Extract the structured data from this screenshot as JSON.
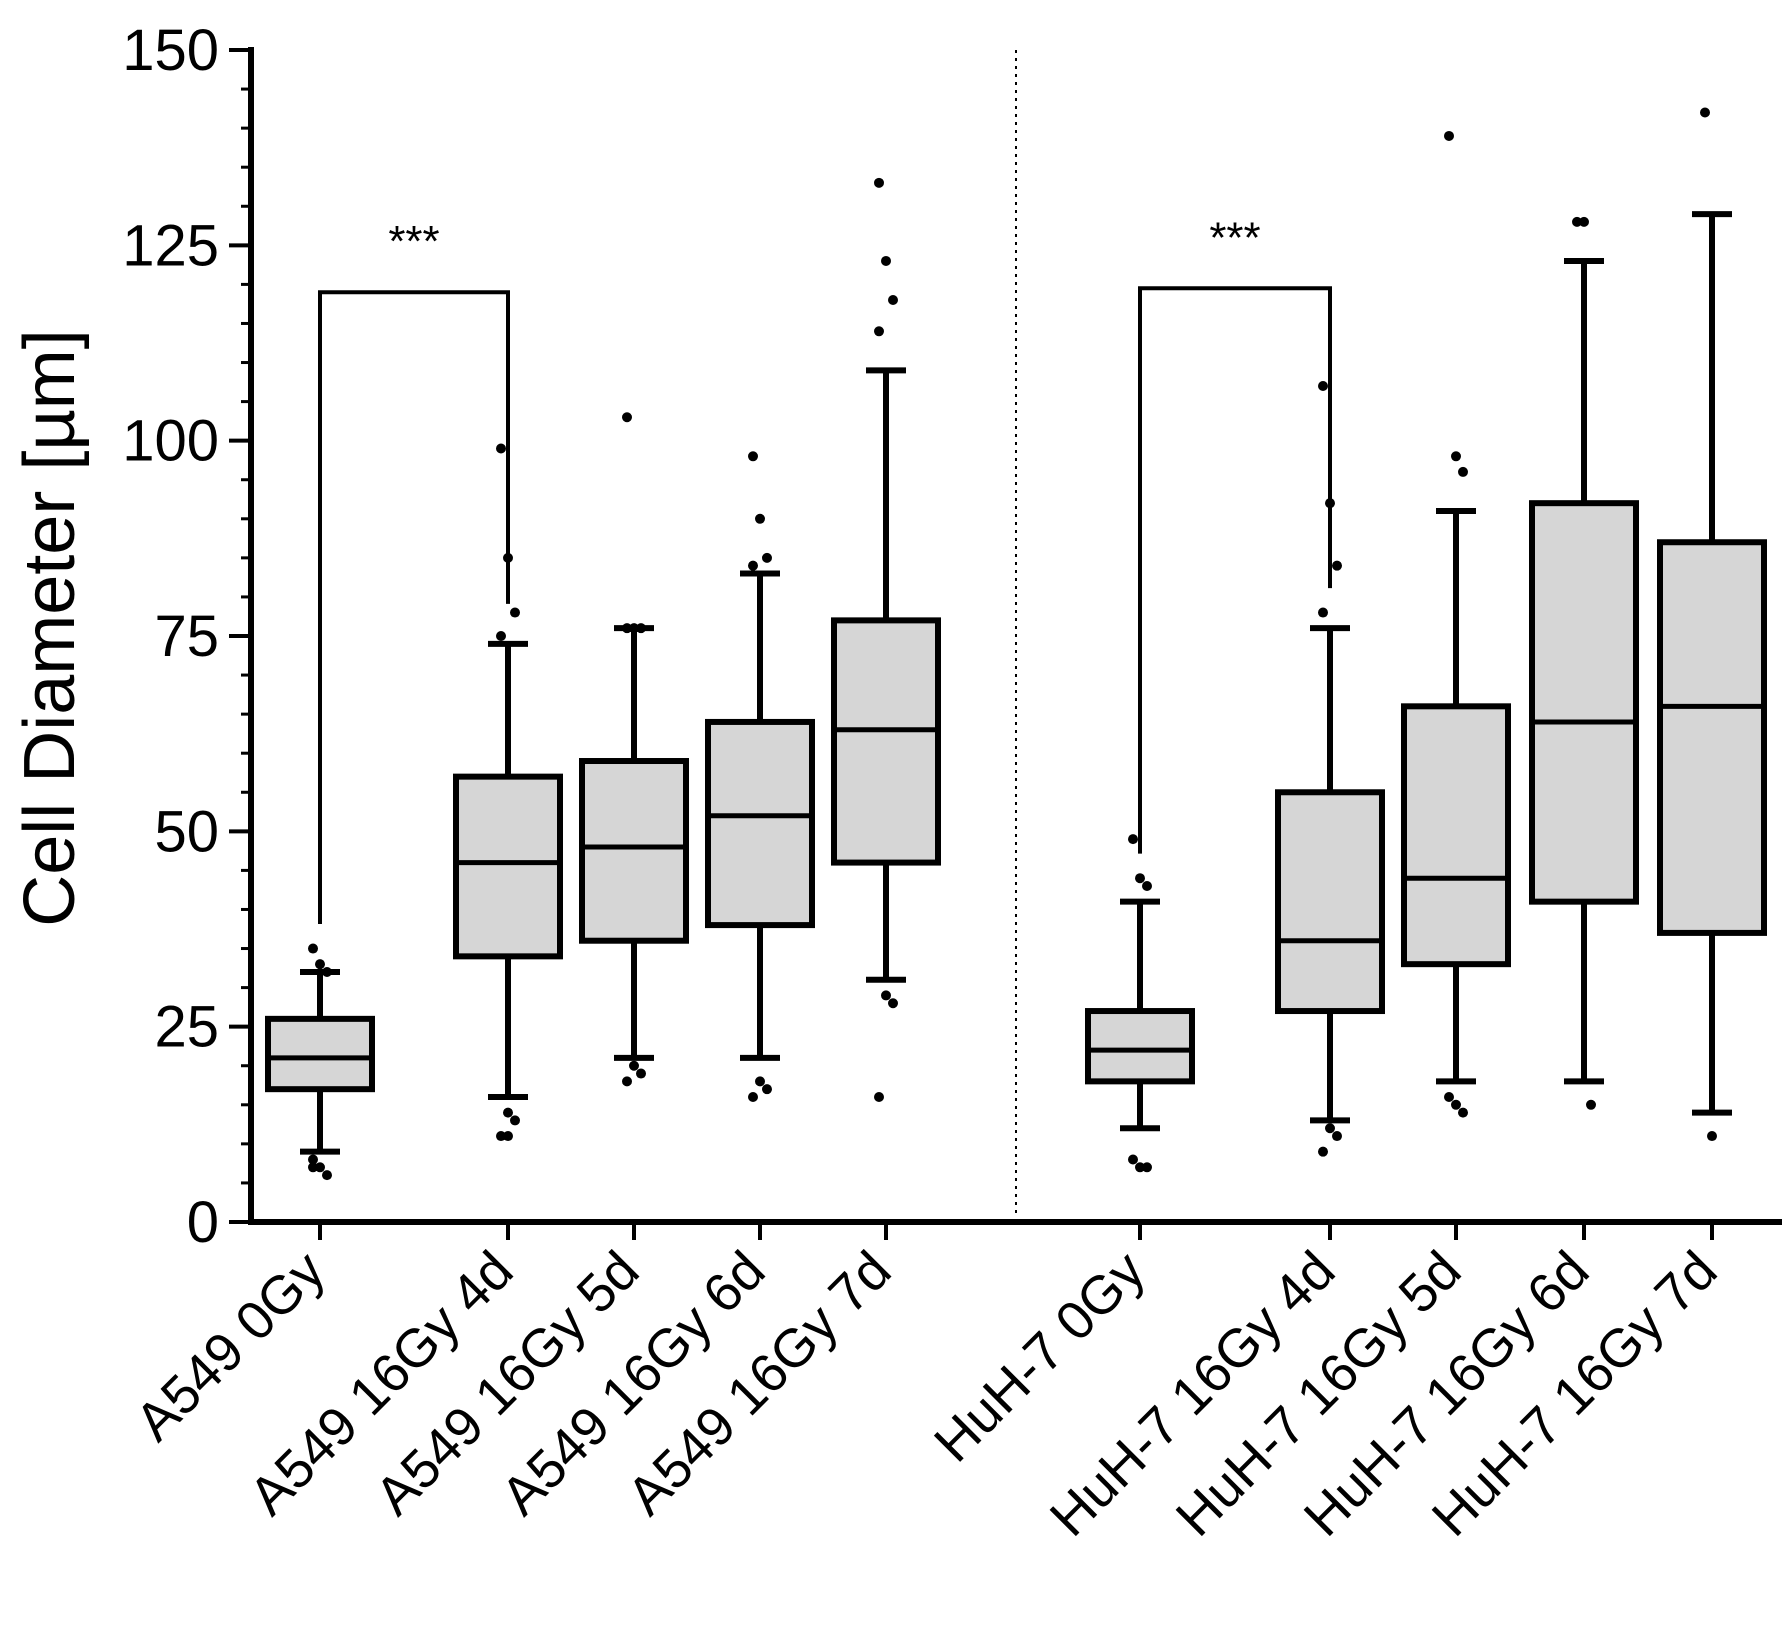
{
  "chart_data": {
    "type": "box",
    "title": "",
    "xlabel": "",
    "ylabel": "Cell Diameter [µm]",
    "ylim": [
      0,
      150
    ],
    "yticks": [
      0,
      25,
      50,
      75,
      100,
      125,
      150
    ],
    "grid": false,
    "groups": [
      {
        "label": "A549 0Gy",
        "min": 9,
        "q1": 17,
        "median": 21,
        "q3": 26,
        "max": 32,
        "outliers": [
          35,
          33,
          32,
          8,
          7,
          6,
          7
        ]
      },
      {
        "label": "A549 16Gy 4d",
        "min": 16,
        "q1": 34,
        "median": 46,
        "q3": 57,
        "max": 74,
        "outliers": [
          99,
          85,
          78,
          75,
          14,
          13,
          11,
          11
        ]
      },
      {
        "label": "A549 16Gy 5d",
        "min": 21,
        "q1": 36,
        "median": 48,
        "q3": 59,
        "max": 76,
        "outliers": [
          103,
          76,
          76,
          76,
          20,
          19,
          18
        ]
      },
      {
        "label": "A549 16Gy 6d",
        "min": 21,
        "q1": 38,
        "median": 52,
        "q3": 64,
        "max": 83,
        "outliers": [
          98,
          90,
          85,
          84,
          18,
          17,
          16
        ]
      },
      {
        "label": "A549 16Gy 7d",
        "min": 31,
        "q1": 46,
        "median": 63,
        "q3": 77,
        "max": 109,
        "outliers": [
          133,
          123,
          118,
          114,
          29,
          28,
          16
        ]
      },
      {
        "label": "HuH-7 0Gy",
        "min": 12,
        "q1": 18,
        "median": 22,
        "q3": 27,
        "max": 41,
        "outliers": [
          49,
          44,
          43,
          8,
          7,
          7
        ]
      },
      {
        "label": "HuH-7 16Gy 4d",
        "min": 13,
        "q1": 27,
        "median": 36,
        "q3": 55,
        "max": 76,
        "outliers": [
          107,
          92,
          84,
          78,
          12,
          11,
          9
        ]
      },
      {
        "label": "HuH-7 16Gy 5d",
        "min": 18,
        "q1": 33,
        "median": 44,
        "q3": 66,
        "max": 91,
        "outliers": [
          139,
          98,
          96,
          16,
          15,
          14
        ]
      },
      {
        "label": "HuH-7 16Gy 6d",
        "min": 18,
        "q1": 41,
        "median": 64,
        "q3": 92,
        "max": 123,
        "outliers": [
          128,
          128,
          15
        ]
      },
      {
        "label": "HuH-7 16Gy 7d",
        "min": 14,
        "q1": 37,
        "median": 66,
        "q3": 87,
        "max": 129,
        "outliers": [
          142,
          11
        ]
      }
    ],
    "annotations": [
      {
        "text": "***",
        "from": "A549 0Gy",
        "to": "A549 16Gy 4d"
      },
      {
        "text": "***",
        "from": "HuH-7 0Gy",
        "to": "HuH-7 16Gy 4d"
      }
    ],
    "separator": "dotted vertical line between A549 and HuH-7 groups"
  }
}
